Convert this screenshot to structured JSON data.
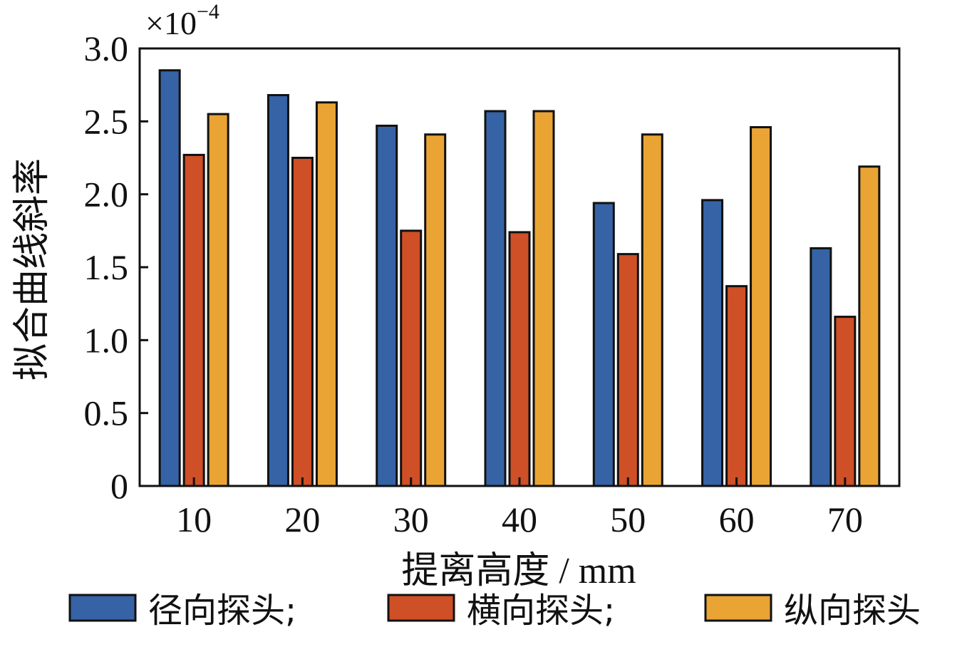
{
  "chart_data": {
    "type": "bar",
    "categories": [
      "10",
      "20",
      "30",
      "40",
      "50",
      "60",
      "70"
    ],
    "series": [
      {
        "name": "径向探头",
        "color": "#3563a6",
        "values": [
          2.85,
          2.68,
          2.47,
          2.57,
          1.94,
          1.96,
          1.63
        ]
      },
      {
        "name": "横向探头",
        "color": "#cf4f26",
        "values": [
          2.27,
          2.25,
          1.75,
          1.74,
          1.59,
          1.37,
          1.16
        ]
      },
      {
        "name": "纵向探头",
        "color": "#e9a434",
        "values": [
          2.55,
          2.63,
          2.41,
          2.57,
          2.41,
          2.46,
          2.19
        ]
      }
    ],
    "legend_labels": [
      "径向探头;",
      "横向探头;",
      "纵向探头"
    ],
    "ylabel": "拟合曲线斜率",
    "xlabel": "提离高度 / mm",
    "scale_base": "×10",
    "scale_exponent": "−4",
    "ylim": [
      0,
      3.0
    ],
    "yticks": [
      0,
      0.5,
      1.0,
      1.5,
      2.0,
      2.5,
      3.0
    ],
    "ytick_labels": [
      "0",
      "0.5",
      "1.0",
      "1.5",
      "2.0",
      "2.5",
      "3.0"
    ],
    "legend_position": "bottom",
    "grid": false
  }
}
